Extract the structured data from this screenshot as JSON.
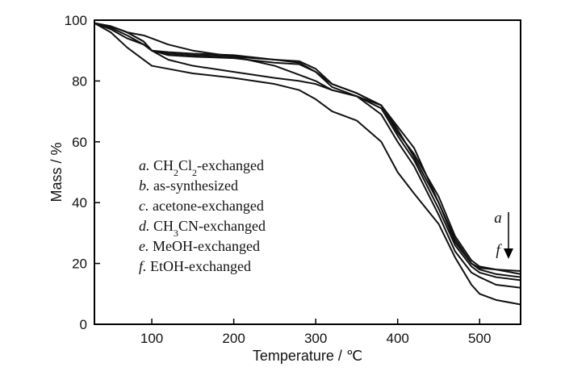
{
  "chart_data": {
    "type": "line",
    "xlabel": "Temperature / ℃",
    "ylabel": "Mass / %",
    "xlim": [
      30,
      550
    ],
    "ylim": [
      0,
      100
    ],
    "xticks": [
      100,
      200,
      300,
      400,
      500
    ],
    "yticks": [
      0,
      20,
      40,
      60,
      80,
      100
    ],
    "grid": false,
    "legend_position": "center-left inside plot",
    "legend": [
      {
        "letter": "a.",
        "parts": [
          {
            "t": " CH"
          },
          {
            "t": "2",
            "sub": true
          },
          {
            "t": "Cl"
          },
          {
            "t": "2",
            "sub": true
          },
          {
            "t": "-exchanged"
          }
        ]
      },
      {
        "letter": "b.",
        "parts": [
          {
            "t": " as-synthesized"
          }
        ]
      },
      {
        "letter": "c.",
        "parts": [
          {
            "t": " acetone-exchanged"
          }
        ]
      },
      {
        "letter": "d.",
        "parts": [
          {
            "t": " CH"
          },
          {
            "t": "3",
            "sub": true
          },
          {
            "t": "CN-exchanged"
          }
        ]
      },
      {
        "letter": "e.",
        "parts": [
          {
            "t": " MeOH-exchanged"
          }
        ]
      },
      {
        "letter": "f.",
        "parts": [
          {
            "t": " EtOH-exchanged"
          }
        ]
      }
    ],
    "annotation": {
      "top_label": "a",
      "bottom_label": "f",
      "arrow": "down"
    },
    "series": [
      {
        "x": [
          30,
          50,
          70,
          90,
          100,
          120,
          150,
          200,
          250,
          280,
          300,
          320,
          350,
          380,
          400,
          420,
          450,
          470,
          490,
          500,
          520,
          550
        ],
        "y": [
          99,
          98,
          96,
          95,
          94,
          92,
          90,
          88,
          85,
          82,
          80,
          77,
          75,
          72,
          65,
          58,
          40,
          28,
          20,
          18.5,
          18,
          17.5
        ]
      },
      {
        "x": [
          30,
          50,
          70,
          90,
          100,
          120,
          150,
          200,
          250,
          280,
          300,
          320,
          350,
          380,
          400,
          420,
          450,
          470,
          490,
          500,
          520,
          550
        ],
        "y": [
          99,
          98,
          96,
          93,
          90,
          89.5,
          89,
          88.5,
          87,
          86,
          83,
          79,
          76,
          72,
          63,
          56,
          42,
          29,
          21,
          19,
          18,
          16.5
        ]
      },
      {
        "x": [
          30,
          50,
          70,
          90,
          100,
          120,
          150,
          200,
          250,
          280,
          300,
          320,
          350,
          380,
          400,
          420,
          450,
          470,
          490,
          500,
          520,
          550
        ],
        "y": [
          99,
          98,
          96,
          93,
          90,
          89,
          88.5,
          88,
          87,
          86.5,
          84,
          79,
          76,
          72,
          64,
          55,
          40,
          27,
          20,
          18,
          16.5,
          15.5
        ]
      },
      {
        "x": [
          30,
          50,
          70,
          90,
          100,
          120,
          150,
          200,
          250,
          280,
          300,
          320,
          350,
          380,
          400,
          420,
          450,
          470,
          490,
          500,
          520,
          550
        ],
        "y": [
          99,
          97.5,
          95,
          92,
          90,
          88.5,
          88,
          87.5,
          86,
          85.5,
          83,
          78,
          75,
          71,
          62,
          54,
          38,
          26,
          19,
          17,
          15.5,
          14.5
        ]
      },
      {
        "x": [
          30,
          50,
          70,
          90,
          100,
          120,
          150,
          200,
          250,
          280,
          300,
          320,
          350,
          380,
          400,
          420,
          450,
          470,
          490,
          500,
          520,
          550
        ],
        "y": [
          99,
          97,
          94,
          92,
          90,
          87,
          85,
          83,
          81,
          80,
          79,
          77,
          75,
          69,
          60,
          52,
          36,
          24,
          17,
          15.5,
          13,
          12
        ]
      },
      {
        "x": [
          30,
          50,
          70,
          90,
          100,
          120,
          150,
          200,
          250,
          280,
          300,
          320,
          350,
          380,
          400,
          420,
          450,
          470,
          490,
          500,
          520,
          550
        ],
        "y": [
          99,
          96,
          91,
          87,
          85,
          84,
          82.5,
          81,
          79,
          77,
          74,
          70,
          67,
          60,
          50,
          43,
          33,
          22,
          13,
          10,
          8,
          6.5
        ]
      }
    ]
  }
}
